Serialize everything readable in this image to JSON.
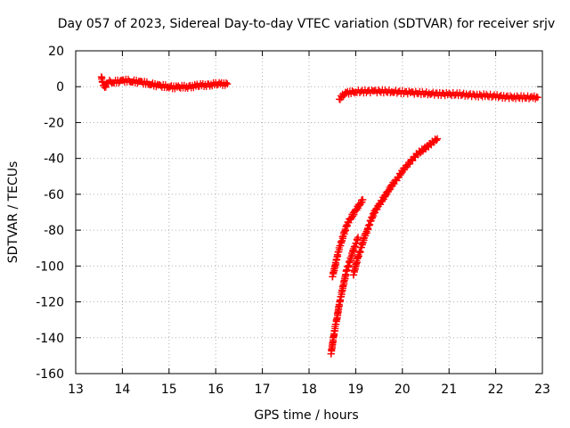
{
  "chart_data": {
    "type": "scatter",
    "title": "Day 057 of 2023, Sidereal Day-to-day VTEC variation (SDTVAR) for receiver srjv",
    "xlabel": "GPS time / hours",
    "ylabel": "SDTVAR / TECUs",
    "xlim": [
      13,
      23
    ],
    "ylim": [
      -160,
      20
    ],
    "xticks": [
      "13",
      "14",
      "15",
      "16",
      "17",
      "18",
      "19",
      "20",
      "21",
      "22",
      "23"
    ],
    "yticks": [
      "20",
      "0",
      "-20",
      "-40",
      "-60",
      "-80",
      "-100",
      "-120",
      "-140",
      "-160"
    ],
    "grid": true,
    "legend": "none",
    "marker": "plus",
    "marker_color": "#ff0000",
    "series": [
      {
        "points": [
          [
            13.55,
            5.5
          ],
          [
            13.58,
            2.0
          ],
          [
            13.62,
            -0.5
          ],
          [
            13.7,
            3.0
          ],
          [
            13.8,
            2.5
          ],
          [
            13.9,
            2.8
          ],
          [
            14.0,
            3.2
          ],
          [
            14.1,
            3.5
          ],
          [
            14.2,
            3.0
          ],
          [
            14.3,
            2.8
          ],
          [
            14.4,
            2.5
          ],
          [
            14.5,
            2.0
          ],
          [
            14.6,
            1.5
          ],
          [
            14.7,
            1.0
          ],
          [
            14.8,
            0.5
          ],
          [
            14.9,
            0.2
          ],
          [
            15.0,
            0.0
          ],
          [
            15.1,
            -0.2
          ],
          [
            15.2,
            -0.3
          ],
          [
            15.3,
            -0.2
          ],
          [
            15.4,
            0.0
          ],
          [
            15.5,
            0.3
          ],
          [
            15.6,
            0.5
          ],
          [
            15.7,
            0.8
          ],
          [
            15.8,
            1.0
          ],
          [
            15.9,
            1.2
          ],
          [
            16.0,
            1.4
          ],
          [
            16.1,
            1.5
          ],
          [
            16.2,
            1.6
          ],
          [
            16.25,
            1.5
          ]
        ]
      },
      {
        "points": [
          [
            18.65,
            -7.0
          ],
          [
            18.72,
            -5.0
          ],
          [
            18.8,
            -3.5
          ],
          [
            18.9,
            -3.0
          ],
          [
            19.0,
            -2.8
          ],
          [
            19.2,
            -2.6
          ],
          [
            19.4,
            -2.5
          ],
          [
            19.6,
            -2.6
          ],
          [
            19.8,
            -2.8
          ],
          [
            20.0,
            -3.0
          ],
          [
            20.2,
            -3.3
          ],
          [
            20.4,
            -3.6
          ],
          [
            20.6,
            -3.8
          ],
          [
            20.8,
            -4.0
          ],
          [
            21.0,
            -4.2
          ],
          [
            21.2,
            -4.3
          ],
          [
            21.4,
            -4.5
          ],
          [
            21.6,
            -4.8
          ],
          [
            21.8,
            -5.0
          ],
          [
            22.0,
            -5.3
          ],
          [
            22.2,
            -5.6
          ],
          [
            22.4,
            -5.8
          ],
          [
            22.6,
            -6.0
          ],
          [
            22.8,
            -6.0
          ],
          [
            22.9,
            -6.0
          ]
        ]
      },
      {
        "points": [
          [
            18.5,
            -106
          ],
          [
            18.55,
            -101
          ],
          [
            18.6,
            -95
          ],
          [
            18.65,
            -90
          ],
          [
            18.7,
            -86
          ],
          [
            18.75,
            -82
          ],
          [
            18.8,
            -78
          ],
          [
            18.85,
            -75
          ],
          [
            18.9,
            -73
          ],
          [
            18.95,
            -71
          ],
          [
            19.0,
            -69
          ],
          [
            19.05,
            -67
          ],
          [
            19.1,
            -65
          ],
          [
            19.15,
            -63
          ]
        ]
      },
      {
        "points": [
          [
            18.47,
            -149
          ],
          [
            18.5,
            -144
          ],
          [
            18.53,
            -139
          ],
          [
            18.56,
            -134
          ],
          [
            18.6,
            -129
          ],
          [
            18.63,
            -124
          ],
          [
            18.66,
            -120
          ],
          [
            18.7,
            -115
          ],
          [
            18.73,
            -111
          ],
          [
            18.77,
            -107
          ],
          [
            18.8,
            -103
          ],
          [
            18.85,
            -99
          ],
          [
            18.9,
            -95
          ],
          [
            18.95,
            -91
          ],
          [
            19.0,
            -88
          ],
          [
            19.05,
            -84
          ]
        ]
      },
      {
        "points": [
          [
            18.95,
            -105
          ],
          [
            19.0,
            -100
          ],
          [
            19.05,
            -95
          ],
          [
            19.1,
            -91
          ],
          [
            19.15,
            -87
          ],
          [
            19.2,
            -83
          ],
          [
            19.25,
            -80
          ],
          [
            19.3,
            -76
          ],
          [
            19.35,
            -73
          ],
          [
            19.4,
            -70
          ],
          [
            19.5,
            -66
          ],
          [
            19.6,
            -62
          ],
          [
            19.7,
            -58
          ],
          [
            19.8,
            -54
          ],
          [
            19.9,
            -51
          ],
          [
            20.0,
            -47
          ],
          [
            20.1,
            -44
          ],
          [
            20.2,
            -41
          ],
          [
            20.3,
            -38
          ],
          [
            20.4,
            -36
          ],
          [
            20.5,
            -34
          ],
          [
            20.6,
            -32
          ],
          [
            20.7,
            -30
          ],
          [
            20.75,
            -29
          ]
        ]
      }
    ]
  }
}
